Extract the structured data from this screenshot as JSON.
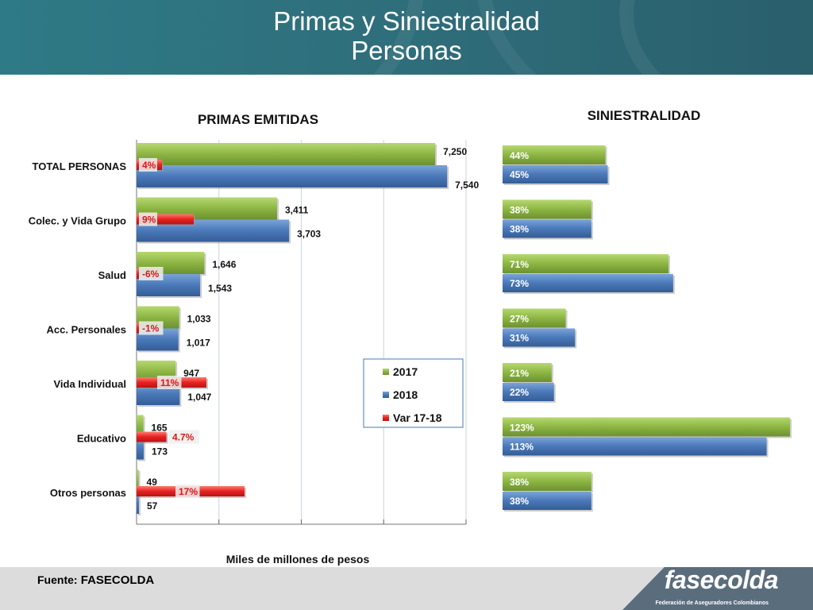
{
  "header": {
    "title_line1": "Primas y Siniestralidad",
    "title_line2": "Personas"
  },
  "footer": {
    "source_label": "Fuente:",
    "source_value": "FASECOLDA",
    "logo": "fasecolda",
    "logo_sub": "Federación de Aseguradores Colombianos"
  },
  "colors": {
    "green": "#8bb540",
    "blue": "#4a78b8",
    "red": "#e52222",
    "header": "#2f6f7c"
  },
  "chart_data": [
    {
      "type": "bar",
      "orientation": "horizontal",
      "title": "PRIMAS EMITIDAS",
      "xlabel": "Miles de millones de pesos",
      "categories": [
        "TOTAL PERSONAS",
        "Colec. y Vida Grupo",
        "Salud",
        "Acc. Personales",
        "Vida Individual",
        "Educativo",
        "Otros personas"
      ],
      "series": [
        {
          "name": "2017",
          "values": [
            7250,
            3411,
            1646,
            1033,
            947,
            165,
            49
          ],
          "labels": [
            "7,250",
            "3,411",
            "1,646",
            "1,033",
            "947",
            "165",
            "49"
          ]
        },
        {
          "name": "2018",
          "values": [
            7540,
            3703,
            1543,
            1017,
            1047,
            173,
            57
          ],
          "labels": [
            "7,540",
            "3,703",
            "1,543",
            "1,017",
            "1,047",
            "173",
            "57"
          ]
        },
        {
          "name": "Var 17-18",
          "values": [
            4,
            9,
            -6,
            -1,
            11,
            4.7,
            17
          ],
          "labels": [
            "4%",
            "9%",
            "-6%",
            "-1%",
            "11%",
            "4.7%",
            "17%"
          ]
        }
      ],
      "xlim": [
        0,
        8000
      ],
      "grid": true,
      "legend": "bottom-right"
    },
    {
      "type": "bar",
      "orientation": "horizontal",
      "title": "SINIESTRALIDAD",
      "categories": [
        "TOTAL PERSONAS",
        "Colec. y Vida Grupo",
        "Salud",
        "Acc. Personales",
        "Vida Individual",
        "Educativo",
        "Otros personas"
      ],
      "series": [
        {
          "name": "2017",
          "values": [
            44,
            38,
            71,
            27,
            21,
            123,
            38
          ],
          "labels": [
            "44%",
            "38%",
            "71%",
            "27%",
            "21%",
            "123%",
            "38%"
          ]
        },
        {
          "name": "2018",
          "values": [
            45,
            38,
            73,
            31,
            22,
            113,
            38
          ],
          "labels": [
            "45%",
            "38%",
            "73%",
            "31%",
            "22%",
            "113%",
            "38%"
          ]
        }
      ],
      "grid": false,
      "legend": "none"
    }
  ]
}
